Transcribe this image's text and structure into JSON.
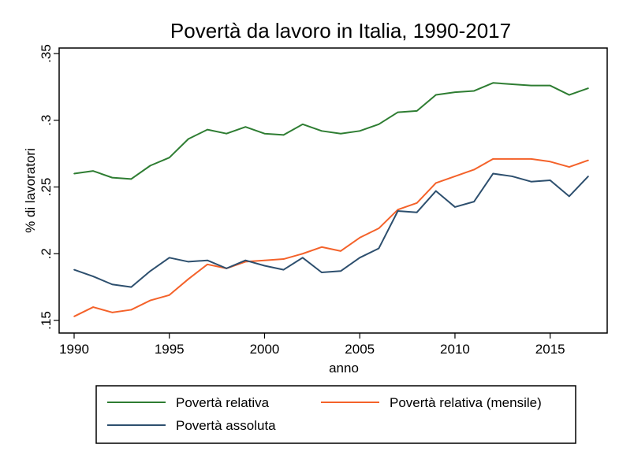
{
  "chart_data": {
    "type": "line",
    "title": "Povertà da lavoro in Italia, 1990-2017",
    "xlabel": "anno",
    "ylabel": "% di lavoratori",
    "xlim": [
      1990,
      2017
    ],
    "ylim": [
      0.15,
      0.35
    ],
    "x_ticks": [
      1990,
      1995,
      2000,
      2005,
      2010,
      2015
    ],
    "x_tick_labels": [
      "1990",
      "1995",
      "2000",
      "2005",
      "2010",
      "2015"
    ],
    "y_ticks": [
      0.15,
      0.2,
      0.25,
      0.3,
      0.35
    ],
    "y_tick_labels": [
      ".15",
      ".2",
      ".25",
      ".3",
      ".35"
    ],
    "grid": false,
    "legend_position": "bottom",
    "x": [
      1990,
      1991,
      1992,
      1993,
      1994,
      1995,
      1996,
      1997,
      1998,
      1999,
      2000,
      2001,
      2002,
      2003,
      2004,
      2005,
      2006,
      2007,
      2008,
      2009,
      2010,
      2011,
      2012,
      2013,
      2014,
      2015,
      2016,
      2017
    ],
    "series": [
      {
        "name": "Povertà relativa",
        "color": "#2e7d32",
        "values": [
          0.26,
          0.262,
          0.257,
          0.256,
          0.266,
          0.272,
          0.286,
          0.293,
          0.29,
          0.295,
          0.29,
          0.289,
          0.297,
          0.292,
          0.29,
          0.292,
          0.297,
          0.306,
          0.307,
          0.319,
          0.321,
          0.322,
          0.328,
          0.327,
          0.326,
          0.326,
          0.319,
          0.324
        ]
      },
      {
        "name": "Povertà relativa (mensile)",
        "color": "#f4622a",
        "values": [
          0.153,
          0.16,
          0.156,
          0.158,
          0.165,
          0.169,
          0.181,
          0.192,
          0.189,
          0.194,
          0.195,
          0.196,
          0.2,
          0.205,
          0.202,
          0.212,
          0.219,
          0.233,
          0.238,
          0.253,
          0.258,
          0.263,
          0.271,
          0.271,
          0.271,
          0.269,
          0.265,
          0.27
        ]
      },
      {
        "name": "Povertà assoluta",
        "color": "#2d4f6e",
        "values": [
          0.188,
          0.183,
          0.177,
          0.175,
          0.187,
          0.197,
          0.194,
          0.195,
          0.189,
          0.195,
          0.191,
          0.188,
          0.197,
          0.186,
          0.187,
          0.197,
          0.204,
          0.232,
          0.231,
          0.247,
          0.235,
          0.239,
          0.26,
          0.258,
          0.254,
          0.255,
          0.243,
          0.258
        ]
      }
    ]
  }
}
